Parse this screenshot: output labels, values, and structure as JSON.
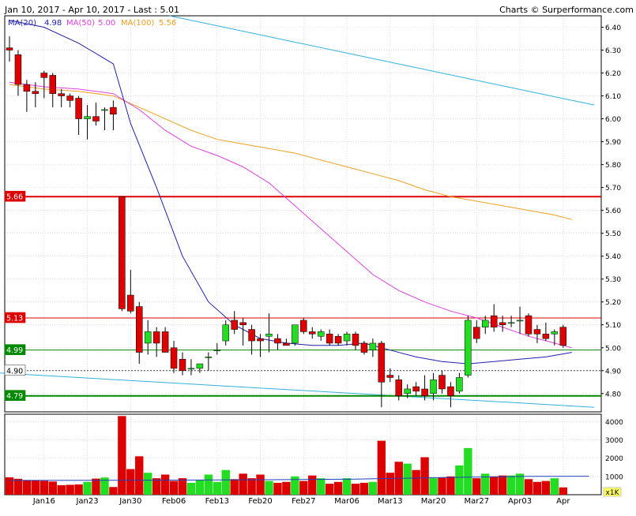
{
  "header": {
    "range_label": "Jan 10, 2017 - Apr 10, 2017 - Last : 5.01",
    "source_label": "Charts © Surperformance.com"
  },
  "legend": {
    "ma20_label": "MA(20)",
    "ma20_value": "4.98",
    "ma50_label": "MA(50)",
    "ma50_value": "5.00",
    "ma100_label": "MA(100)",
    "ma100_value": "5.56"
  },
  "colors": {
    "background": "#ffffff",
    "grid": "#c8c8c8",
    "up_candle": "#22dd22",
    "down_candle": "#dd0000",
    "ma20": "#2020b0",
    "ma50": "#e040e0",
    "ma100": "#f0a020",
    "trend": "#30b0e0",
    "resistance": "#dd0000",
    "support": "#008800",
    "volume_avg": "#2040c0"
  },
  "levels": [
    {
      "label": "5.66",
      "value": 5.66,
      "kind": "resistance-strong"
    },
    {
      "label": "5.13",
      "value": 5.13,
      "kind": "resistance"
    },
    {
      "label": "4.99",
      "value": 4.99,
      "kind": "support"
    },
    {
      "label": "4.90",
      "value": 4.9,
      "kind": "reference"
    },
    {
      "label": "4.79",
      "value": 4.79,
      "kind": "support-strong"
    }
  ],
  "chart_data": {
    "type": "candlestick",
    "title": "",
    "price_axis": {
      "range": [
        4.72,
        6.45
      ],
      "ticks": [
        "4.80",
        "4.90",
        "5.00",
        "5.10",
        "5.20",
        "5.30",
        "5.40",
        "5.50",
        "5.60",
        "5.70",
        "5.80",
        "5.90",
        "6.00",
        "6.10",
        "6.20",
        "6.30",
        "6.40"
      ]
    },
    "volume_axis": {
      "range": [
        0,
        4400
      ],
      "ticks": [
        "1000",
        "2000",
        "3000",
        "4000"
      ],
      "unit_label": "x1K"
    },
    "x_tick_labels": [
      {
        "i": 4,
        "label": "Jan16"
      },
      {
        "i": 9,
        "label": "Jan23"
      },
      {
        "i": 14,
        "label": "Jan30"
      },
      {
        "i": 19,
        "label": "Feb06"
      },
      {
        "i": 24,
        "label": "Feb13"
      },
      {
        "i": 29,
        "label": "Feb20"
      },
      {
        "i": 34,
        "label": "Feb27"
      },
      {
        "i": 39,
        "label": "Mar06"
      },
      {
        "i": 44,
        "label": "Mar13"
      },
      {
        "i": 49,
        "label": "Mar20"
      },
      {
        "i": 54,
        "label": "Mar27"
      },
      {
        "i": 59,
        "label": "Apr03"
      },
      {
        "i": 64,
        "label": "Apr"
      }
    ],
    "candles": [
      {
        "o": 6.31,
        "h": 6.36,
        "l": 6.25,
        "c": 6.3,
        "v": 950
      },
      {
        "o": 6.28,
        "h": 6.3,
        "l": 6.1,
        "c": 6.15,
        "v": 870
      },
      {
        "o": 6.15,
        "h": 6.17,
        "l": 6.03,
        "c": 6.12,
        "v": 800
      },
      {
        "o": 6.12,
        "h": 6.16,
        "l": 6.05,
        "c": 6.11,
        "v": 780
      },
      {
        "o": 6.2,
        "h": 6.21,
        "l": 6.09,
        "c": 6.18,
        "v": 760
      },
      {
        "o": 6.19,
        "h": 6.2,
        "l": 6.05,
        "c": 6.11,
        "v": 720
      },
      {
        "o": 6.11,
        "h": 6.13,
        "l": 6.05,
        "c": 6.1,
        "v": 520
      },
      {
        "o": 6.1,
        "h": 6.11,
        "l": 6.05,
        "c": 6.08,
        "v": 540
      },
      {
        "o": 6.09,
        "h": 6.1,
        "l": 5.93,
        "c": 6.0,
        "v": 560
      },
      {
        "o": 6.0,
        "h": 6.06,
        "l": 5.91,
        "c": 6.01,
        "v": 700
      },
      {
        "o": 6.01,
        "h": 6.07,
        "l": 5.97,
        "c": 5.99,
        "v": 880
      },
      {
        "o": 6.04,
        "h": 6.05,
        "l": 5.95,
        "c": 6.04,
        "v": 940
      },
      {
        "o": 6.05,
        "h": 6.08,
        "l": 5.95,
        "c": 6.02,
        "v": 420
      },
      {
        "o": 5.66,
        "h": 5.66,
        "l": 5.16,
        "c": 5.17,
        "v": 4300
      },
      {
        "o": 5.23,
        "h": 5.34,
        "l": 5.15,
        "c": 5.16,
        "v": 1400
      },
      {
        "o": 5.18,
        "h": 5.2,
        "l": 4.93,
        "c": 4.98,
        "v": 2100
      },
      {
        "o": 5.02,
        "h": 5.12,
        "l": 4.97,
        "c": 5.07,
        "v": 1200
      },
      {
        "o": 5.07,
        "h": 5.09,
        "l": 4.96,
        "c": 5.02,
        "v": 900
      },
      {
        "o": 5.07,
        "h": 5.09,
        "l": 4.98,
        "c": 4.98,
        "v": 1100
      },
      {
        "o": 5.0,
        "h": 5.03,
        "l": 4.89,
        "c": 4.91,
        "v": 750
      },
      {
        "o": 4.95,
        "h": 4.98,
        "l": 4.88,
        "c": 4.9,
        "v": 900
      },
      {
        "o": 4.91,
        "h": 4.95,
        "l": 4.88,
        "c": 4.91,
        "v": 650
      },
      {
        "o": 4.91,
        "h": 4.93,
        "l": 4.89,
        "c": 4.93,
        "v": 800
      },
      {
        "o": 4.96,
        "h": 4.98,
        "l": 4.9,
        "c": 4.96,
        "v": 1100
      },
      {
        "o": 4.99,
        "h": 5.02,
        "l": 4.97,
        "c": 4.99,
        "v": 700
      },
      {
        "o": 5.03,
        "h": 5.12,
        "l": 5.01,
        "c": 5.1,
        "v": 1350
      },
      {
        "o": 5.12,
        "h": 5.16,
        "l": 5.06,
        "c": 5.08,
        "v": 850
      },
      {
        "o": 5.11,
        "h": 5.13,
        "l": 5.01,
        "c": 5.1,
        "v": 1150
      },
      {
        "o": 5.08,
        "h": 5.1,
        "l": 4.97,
        "c": 5.03,
        "v": 900
      },
      {
        "o": 5.04,
        "h": 5.06,
        "l": 4.96,
        "c": 5.03,
        "v": 1100
      },
      {
        "o": 5.05,
        "h": 5.15,
        "l": 4.98,
        "c": 5.06,
        "v": 750
      },
      {
        "o": 5.04,
        "h": 5.06,
        "l": 4.99,
        "c": 5.02,
        "v": 650
      },
      {
        "o": 5.02,
        "h": 5.04,
        "l": 5.01,
        "c": 5.01,
        "v": 700
      },
      {
        "o": 5.02,
        "h": 5.1,
        "l": 5.01,
        "c": 5.1,
        "v": 1000
      },
      {
        "o": 5.12,
        "h": 5.13,
        "l": 5.06,
        "c": 5.07,
        "v": 750
      },
      {
        "o": 5.07,
        "h": 5.09,
        "l": 5.04,
        "c": 5.06,
        "v": 1050
      },
      {
        "o": 5.05,
        "h": 5.08,
        "l": 5.03,
        "c": 5.07,
        "v": 900
      },
      {
        "o": 5.06,
        "h": 5.08,
        "l": 5.01,
        "c": 5.02,
        "v": 600
      },
      {
        "o": 5.05,
        "h": 5.06,
        "l": 5.01,
        "c": 5.02,
        "v": 700
      },
      {
        "o": 5.03,
        "h": 5.07,
        "l": 5.01,
        "c": 5.06,
        "v": 900
      },
      {
        "o": 5.06,
        "h": 5.07,
        "l": 4.99,
        "c": 5.01,
        "v": 600
      },
      {
        "o": 5.02,
        "h": 5.03,
        "l": 4.97,
        "c": 4.98,
        "v": 650
      },
      {
        "o": 4.99,
        "h": 5.04,
        "l": 4.96,
        "c": 5.02,
        "v": 700
      },
      {
        "o": 5.02,
        "h": 5.03,
        "l": 4.74,
        "c": 4.85,
        "v": 2950
      },
      {
        "o": 4.88,
        "h": 4.91,
        "l": 4.85,
        "c": 4.87,
        "v": 1200
      },
      {
        "o": 4.86,
        "h": 4.88,
        "l": 4.77,
        "c": 4.79,
        "v": 1800
      },
      {
        "o": 4.8,
        "h": 4.84,
        "l": 4.78,
        "c": 4.82,
        "v": 1700
      },
      {
        "o": 4.83,
        "h": 4.85,
        "l": 4.79,
        "c": 4.81,
        "v": 1350
      },
      {
        "o": 4.82,
        "h": 4.88,
        "l": 4.77,
        "c": 4.79,
        "v": 2050
      },
      {
        "o": 4.8,
        "h": 4.89,
        "l": 4.77,
        "c": 4.86,
        "v": 900
      },
      {
        "o": 4.88,
        "h": 4.9,
        "l": 4.8,
        "c": 4.82,
        "v": 950
      },
      {
        "o": 4.83,
        "h": 4.85,
        "l": 4.74,
        "c": 4.79,
        "v": 1000
      },
      {
        "o": 4.81,
        "h": 4.89,
        "l": 4.8,
        "c": 4.87,
        "v": 1600
      },
      {
        "o": 4.88,
        "h": 5.14,
        "l": 4.87,
        "c": 5.12,
        "v": 2550
      },
      {
        "o": 5.09,
        "h": 5.12,
        "l": 5.02,
        "c": 5.04,
        "v": 900
      },
      {
        "o": 5.09,
        "h": 5.14,
        "l": 5.06,
        "c": 5.12,
        "v": 1150
      },
      {
        "o": 5.14,
        "h": 5.19,
        "l": 5.07,
        "c": 5.09,
        "v": 1000
      },
      {
        "o": 5.11,
        "h": 5.14,
        "l": 5.07,
        "c": 5.1,
        "v": 1050
      },
      {
        "o": 5.11,
        "h": 5.14,
        "l": 5.09,
        "c": 5.11,
        "v": 1050
      },
      {
        "o": 5.12,
        "h": 5.18,
        "l": 5.06,
        "c": 5.12,
        "v": 1150
      },
      {
        "o": 5.14,
        "h": 5.15,
        "l": 5.05,
        "c": 5.06,
        "v": 850
      },
      {
        "o": 5.08,
        "h": 5.1,
        "l": 5.02,
        "c": 5.06,
        "v": 700
      },
      {
        "o": 5.06,
        "h": 5.11,
        "l": 5.03,
        "c": 5.04,
        "v": 750
      },
      {
        "o": 5.06,
        "h": 5.08,
        "l": 5.01,
        "c": 5.07,
        "v": 900
      },
      {
        "o": 5.09,
        "h": 5.1,
        "l": 5.0,
        "c": 5.01,
        "v": 400
      }
    ],
    "ma20": [
      [
        0,
        6.43
      ],
      [
        4,
        6.4
      ],
      [
        8,
        6.33
      ],
      [
        12,
        6.24
      ],
      [
        14,
        5.98
      ],
      [
        17,
        5.7
      ],
      [
        20,
        5.4
      ],
      [
        23,
        5.2
      ],
      [
        26,
        5.1
      ],
      [
        29,
        5.04
      ],
      [
        32,
        5.02
      ],
      [
        35,
        5.01
      ],
      [
        38,
        5.01
      ],
      [
        41,
        5.02
      ],
      [
        44,
        4.99
      ],
      [
        47,
        4.96
      ],
      [
        50,
        4.94
      ],
      [
        53,
        4.93
      ],
      [
        56,
        4.94
      ],
      [
        59,
        4.95
      ],
      [
        62,
        4.96
      ],
      [
        65,
        4.98
      ]
    ],
    "ma50": [
      [
        0,
        6.16
      ],
      [
        4,
        6.14
      ],
      [
        8,
        6.13
      ],
      [
        12,
        6.11
      ],
      [
        15,
        6.04
      ],
      [
        18,
        5.95
      ],
      [
        21,
        5.88
      ],
      [
        24,
        5.84
      ],
      [
        27,
        5.79
      ],
      [
        30,
        5.72
      ],
      [
        33,
        5.62
      ],
      [
        36,
        5.52
      ],
      [
        39,
        5.42
      ],
      [
        42,
        5.32
      ],
      [
        45,
        5.25
      ],
      [
        48,
        5.2
      ],
      [
        51,
        5.16
      ],
      [
        54,
        5.13
      ],
      [
        57,
        5.09
      ],
      [
        60,
        5.05
      ],
      [
        63,
        5.02
      ],
      [
        65,
        5.0
      ]
    ],
    "ma100": [
      [
        0,
        6.15
      ],
      [
        4,
        6.13
      ],
      [
        8,
        6.12
      ],
      [
        12,
        6.1
      ],
      [
        15,
        6.05
      ],
      [
        18,
        6.0
      ],
      [
        21,
        5.95
      ],
      [
        24,
        5.91
      ],
      [
        27,
        5.89
      ],
      [
        30,
        5.87
      ],
      [
        33,
        5.85
      ],
      [
        36,
        5.82
      ],
      [
        39,
        5.79
      ],
      [
        42,
        5.76
      ],
      [
        45,
        5.73
      ],
      [
        48,
        5.69
      ],
      [
        51,
        5.66
      ],
      [
        54,
        5.64
      ],
      [
        57,
        5.62
      ],
      [
        60,
        5.6
      ],
      [
        63,
        5.58
      ],
      [
        65,
        5.56
      ]
    ],
    "trend_upper": [
      [
        18.5,
        6.45
      ],
      [
        67.6,
        6.06
      ]
    ],
    "trend_lower": [
      [
        -1.3,
        4.89
      ],
      [
        67.6,
        4.74
      ]
    ],
    "volume_avg": [
      [
        0,
        780
      ],
      [
        10,
        790
      ],
      [
        20,
        800
      ],
      [
        30,
        820
      ],
      [
        40,
        850
      ],
      [
        50,
        940
      ],
      [
        60,
        1000
      ],
      [
        67,
        1010
      ]
    ]
  }
}
